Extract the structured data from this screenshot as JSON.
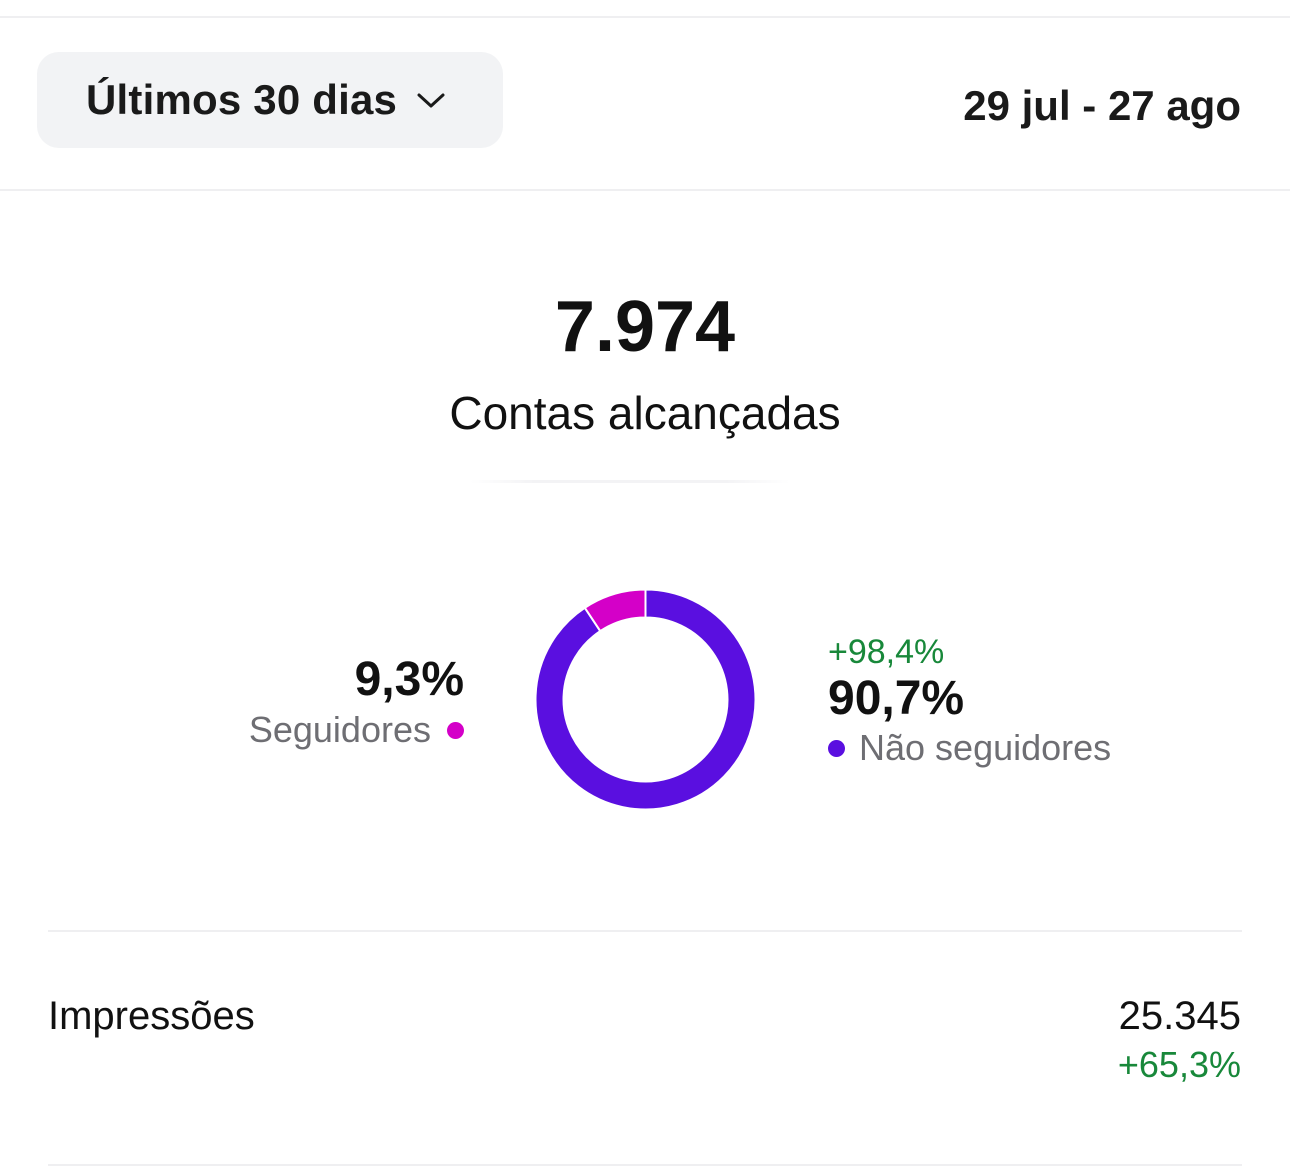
{
  "header": {
    "range_label": "Últimos 30 dias",
    "date_range": "29 jul - 27 ago"
  },
  "summary": {
    "accounts_reached": "7.974",
    "accounts_reached_label": "Contas alcançadas"
  },
  "audience": {
    "followers": {
      "percent_text": "9,3%",
      "label": "Seguidores",
      "color": "#d400c8"
    },
    "non_followers": {
      "percent_text": "90,7%",
      "label": "Não seguidores",
      "change": "+98,4%",
      "color": "#5a0fe0"
    }
  },
  "chart_data": {
    "type": "pie",
    "style": "donut",
    "slices": [
      {
        "label": "Seguidores",
        "value": 9.3,
        "color": "#d400c8"
      },
      {
        "label": "Não seguidores",
        "value": 90.7,
        "color": "#5a0fe0"
      }
    ]
  },
  "impressions": {
    "label": "Impressões",
    "value": "25.345",
    "change": "+65,3%"
  },
  "colors": {
    "positive": "#18883a",
    "divider": "#efeff1"
  }
}
